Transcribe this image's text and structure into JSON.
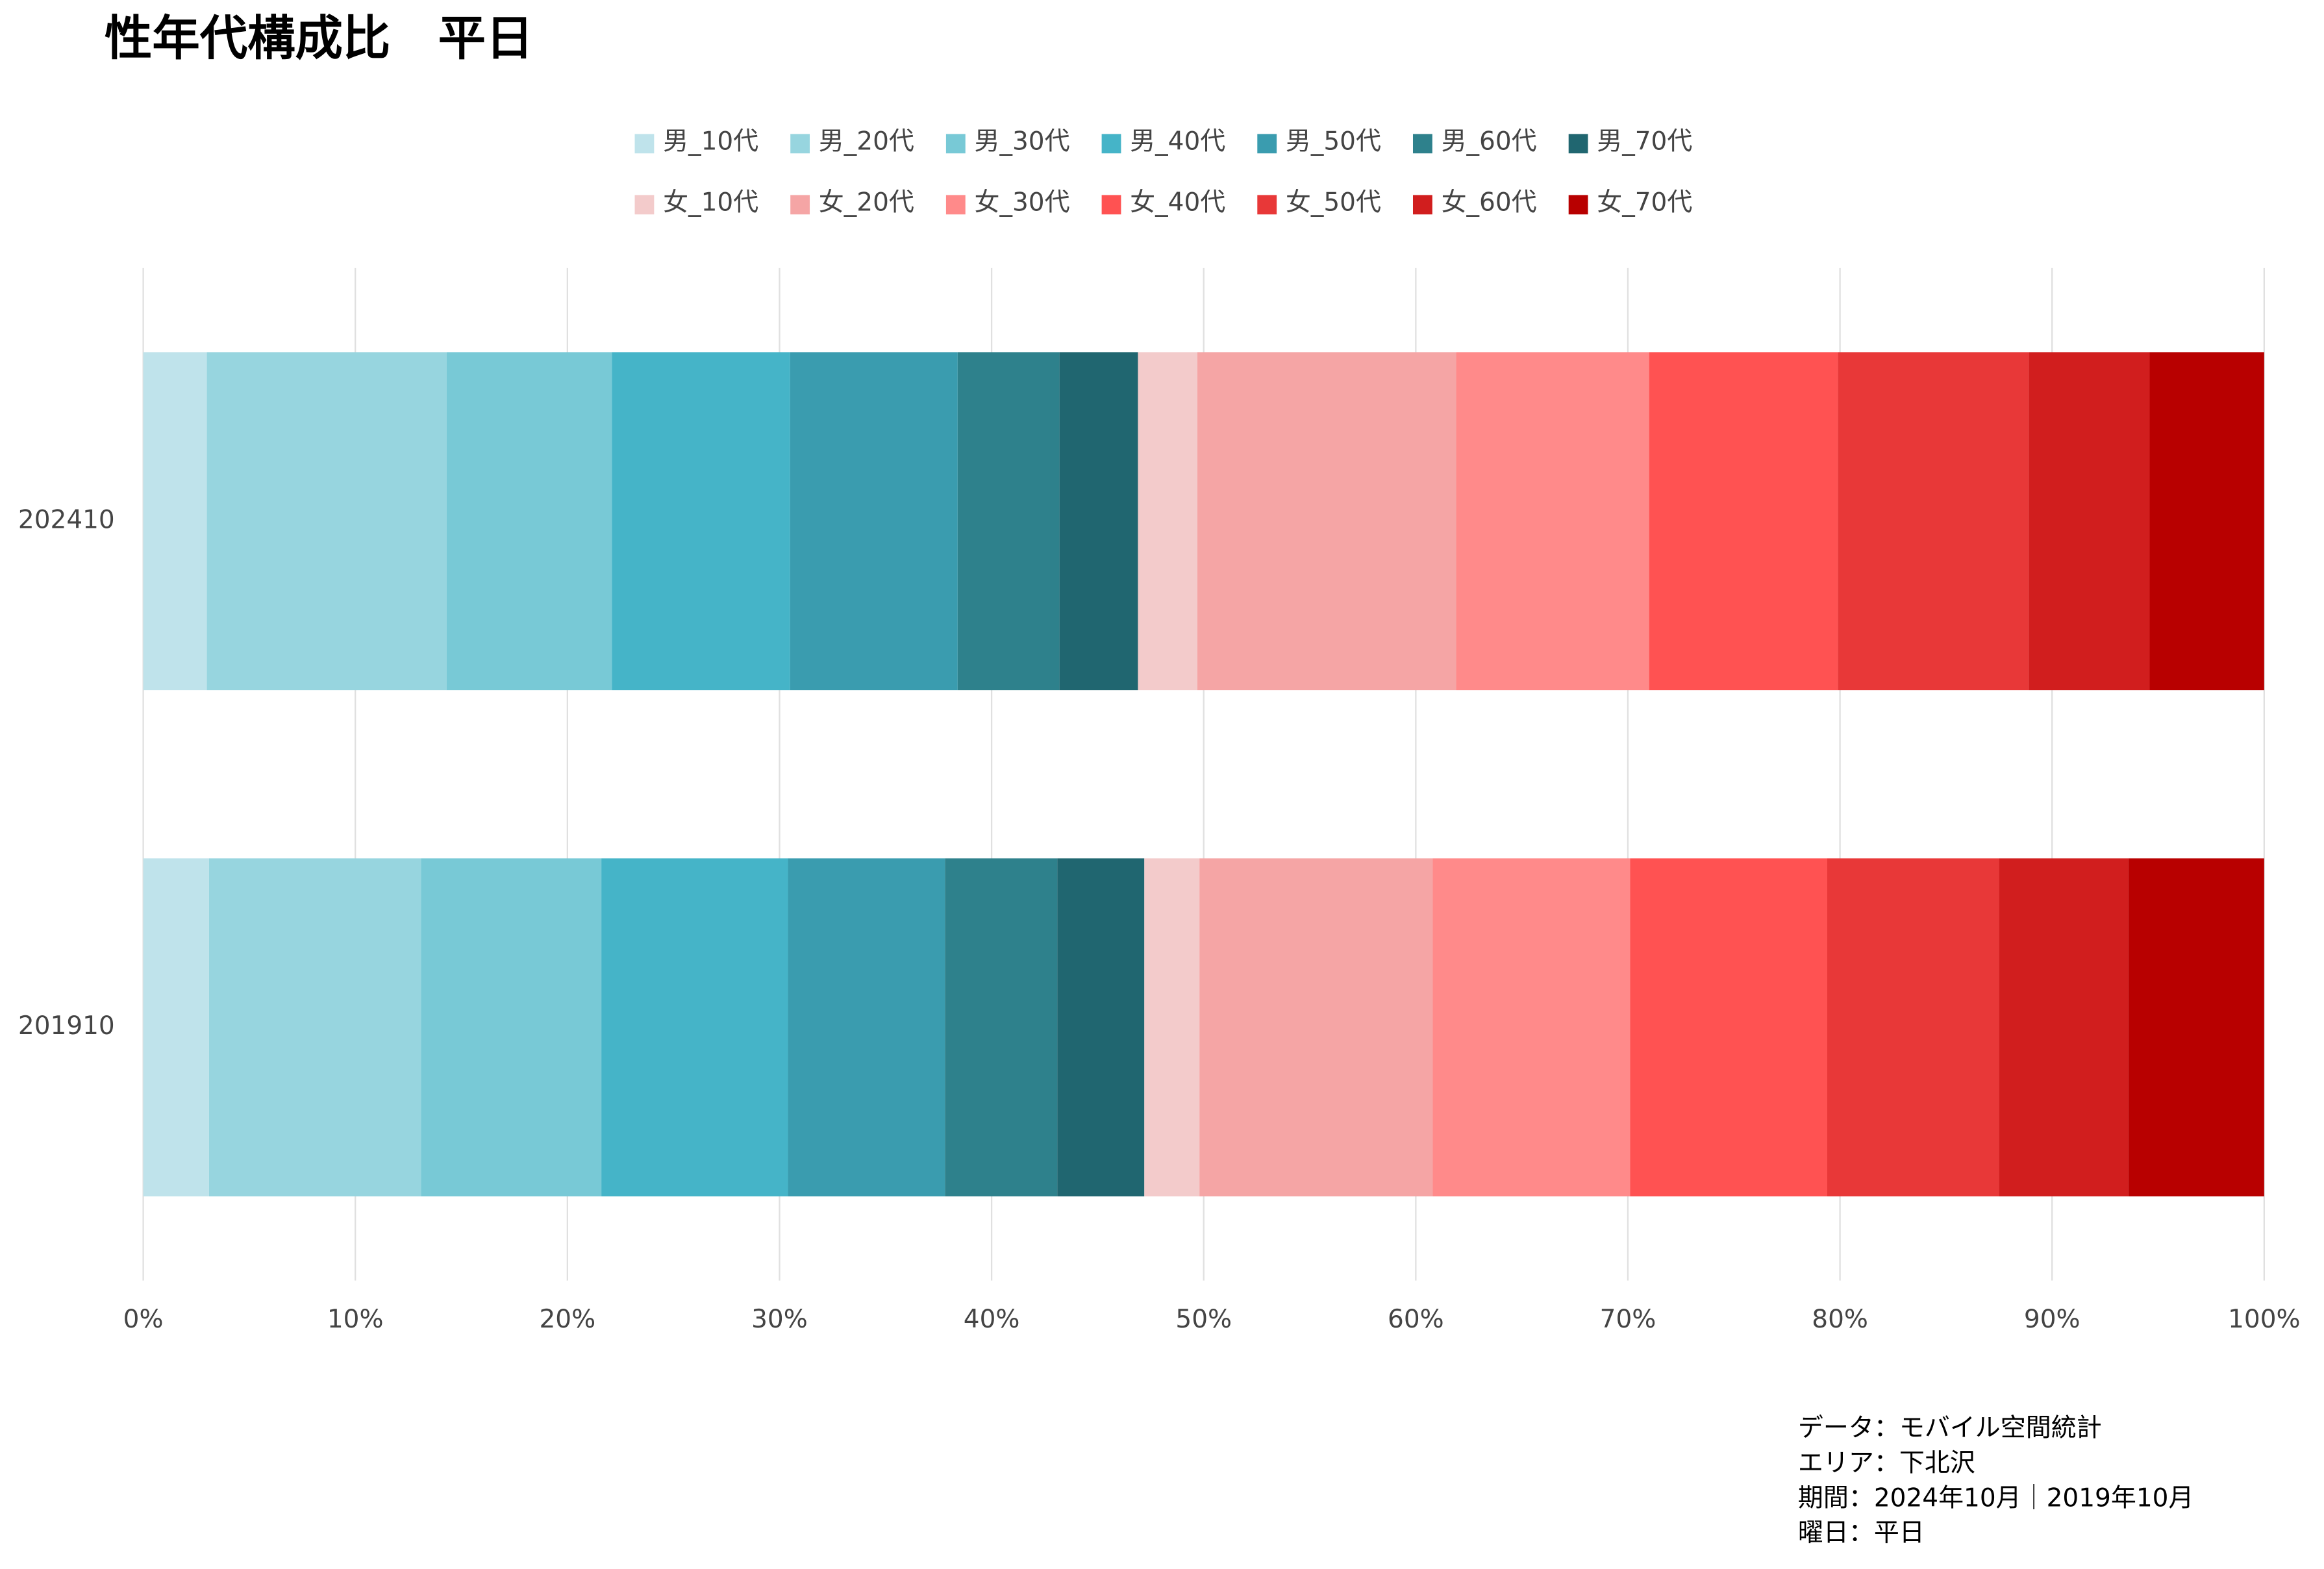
{
  "chart_data": {
    "type": "stacked-bar-horizontal",
    "title": "性年代構成比　平日",
    "categories": [
      "202410",
      "201910"
    ],
    "series": [
      {
        "name": "男_10代",
        "color": "#bfe3eb",
        "values": [
          3.0,
          3.1
        ]
      },
      {
        "name": "男_20代",
        "color": "#97d5df",
        "values": [
          11.3,
          10.0
        ]
      },
      {
        "name": "男_30代",
        "color": "#78c9d6",
        "values": [
          7.8,
          8.5
        ]
      },
      {
        "name": "男_40代",
        "color": "#45b4c8",
        "values": [
          8.4,
          8.8
        ]
      },
      {
        "name": "男_50代",
        "color": "#3a9caf",
        "values": [
          7.9,
          7.4
        ]
      },
      {
        "name": "男_60代",
        "color": "#2e818c",
        "values": [
          4.8,
          5.3
        ]
      },
      {
        "name": "男_70代",
        "color": "#206670",
        "values": [
          3.7,
          4.1
        ]
      },
      {
        "name": "女_10代",
        "color": "#f3cbcb",
        "values": [
          2.8,
          2.6
        ]
      },
      {
        "name": "女_20代",
        "color": "#f5a5a5",
        "values": [
          12.2,
          11.0
        ]
      },
      {
        "name": "女_30代",
        "color": "#ff8a8a",
        "values": [
          9.1,
          9.3
        ]
      },
      {
        "name": "女_40代",
        "color": "#ff5252",
        "values": [
          8.9,
          9.3
        ]
      },
      {
        "name": "女_50代",
        "color": "#e83838",
        "values": [
          9.0,
          8.1
        ]
      },
      {
        "name": "女_60代",
        "color": "#d11e1e",
        "values": [
          5.7,
          6.1
        ]
      },
      {
        "name": "女_70代",
        "color": "#b80000",
        "values": [
          5.4,
          6.4
        ]
      }
    ],
    "xlim": [
      0,
      100
    ],
    "xticks": [
      {
        "value": 0,
        "label": "0%"
      },
      {
        "value": 10,
        "label": "10%"
      },
      {
        "value": 20,
        "label": "20%"
      },
      {
        "value": 30,
        "label": "30%"
      },
      {
        "value": 40,
        "label": "40%"
      },
      {
        "value": 50,
        "label": "50%"
      },
      {
        "value": 60,
        "label": "60%"
      },
      {
        "value": 70,
        "label": "70%"
      },
      {
        "value": 80,
        "label": "80%"
      },
      {
        "value": 90,
        "label": "90%"
      },
      {
        "value": 100,
        "label": "100%"
      }
    ],
    "grid": true,
    "notes": [
      "データ：モバイル空間統計",
      "エリア：下北沢",
      "期間：2024年10月｜2019年10月",
      "曜日：平日"
    ]
  }
}
